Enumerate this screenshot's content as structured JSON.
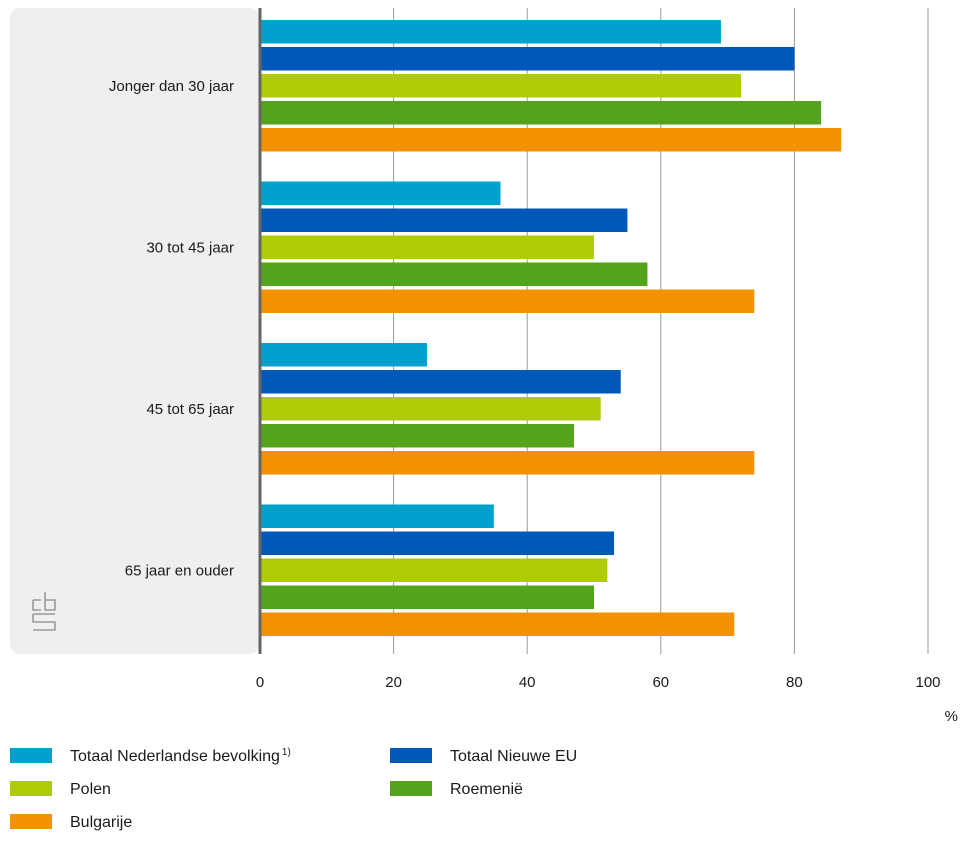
{
  "chart_data": {
    "type": "bar",
    "orientation": "horizontal",
    "categories": [
      "Jonger dan 30 jaar",
      "30 tot 45 jaar",
      "45 tot 65 jaar",
      "65 jaar en ouder"
    ],
    "series": [
      {
        "name": "Totaal Nederlandse bevolking",
        "footnote": "1)",
        "color": "#00a1cd",
        "values": [
          69,
          36,
          25,
          35
        ]
      },
      {
        "name": "Totaal Nieuwe EU",
        "color": "#0058b8",
        "values": [
          80,
          55,
          54,
          53
        ]
      },
      {
        "name": "Polen",
        "color": "#afcb05",
        "values": [
          72,
          50,
          51,
          52
        ]
      },
      {
        "name": "Roemenië",
        "color": "#53a31d",
        "values": [
          84,
          58,
          47,
          50
        ]
      },
      {
        "name": "Bulgarije",
        "color": "#f39200",
        "values": [
          87,
          74,
          74,
          71
        ]
      }
    ],
    "xlim": [
      0,
      100
    ],
    "xticks": [
      "0",
      "20",
      "40",
      "60",
      "80",
      "100"
    ],
    "xunit": "%",
    "grid": true,
    "legend_position": "bottom"
  },
  "colors": {
    "panel_background": "#efefef",
    "gridline": "#999999",
    "zero_axis": "#666666"
  },
  "logo_icon": "cbs-logo-icon"
}
